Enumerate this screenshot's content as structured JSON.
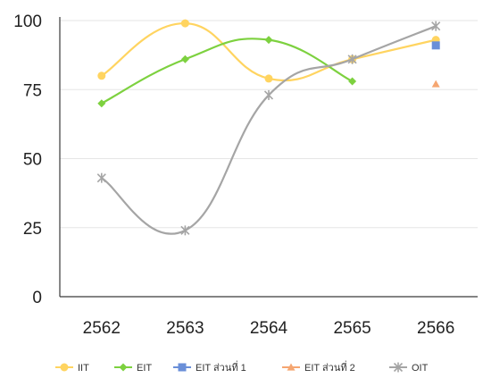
{
  "chart_data": {
    "type": "line",
    "title": "",
    "xlabel": "",
    "ylabel": "",
    "categories": [
      "2562",
      "2563",
      "2564",
      "2565",
      "2566"
    ],
    "ylim": [
      0,
      100
    ],
    "yticks": [
      0,
      25,
      50,
      75,
      100
    ],
    "grid": true,
    "legend_position": "bottom",
    "series": [
      {
        "name": "IIT",
        "values": [
          80,
          99,
          79,
          86,
          93
        ],
        "color": "#FFD460",
        "marker": "circle"
      },
      {
        "name": "EIT",
        "values": [
          70,
          86,
          93,
          78,
          null
        ],
        "color": "#7DD13F",
        "marker": "diamond"
      },
      {
        "name": "EIT ส่วนที่ 1",
        "values": [
          null,
          null,
          null,
          null,
          91
        ],
        "color": "#6A8FD8",
        "marker": "square"
      },
      {
        "name": "EIT ส่วนที่ 2",
        "values": [
          null,
          null,
          null,
          null,
          77
        ],
        "color": "#F5A671",
        "marker": "triangle"
      },
      {
        "name": "OIT",
        "values": [
          43,
          24,
          73,
          86,
          98
        ],
        "color": "#A5A5A5",
        "marker": "star"
      }
    ]
  }
}
